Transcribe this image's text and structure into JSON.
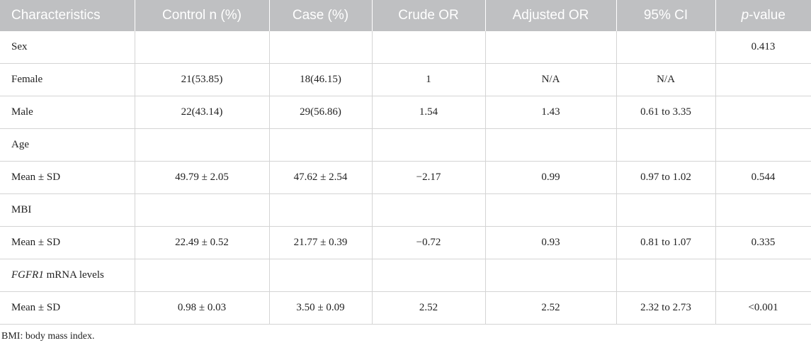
{
  "table": {
    "headers": [
      {
        "label": "Characteristics",
        "name": "header-characteristics"
      },
      {
        "label": "Control n (%)",
        "name": "header-control"
      },
      {
        "label": "Case (%)",
        "name": "header-case"
      },
      {
        "label": "Crude OR",
        "name": "header-crude-or"
      },
      {
        "label": "Adjusted OR",
        "name": "header-adjusted-or"
      },
      {
        "label": "95% CI",
        "name": "header-ci"
      }
    ],
    "p_header": {
      "italic_part": "p",
      "rest": "-value"
    },
    "rows": [
      {
        "kind": "section",
        "cells": [
          "Sex",
          "",
          "",
          "",
          "",
          "",
          "0.413"
        ]
      },
      {
        "kind": "data",
        "cells": [
          "Female",
          "21(53.85)",
          "18(46.15)",
          "1",
          "N/A",
          "N/A",
          ""
        ]
      },
      {
        "kind": "data",
        "cells": [
          "Male",
          "22(43.14)",
          "29(56.86)",
          "1.54",
          "1.43",
          "0.61 to 3.35",
          ""
        ]
      },
      {
        "kind": "section",
        "cells": [
          "Age",
          "",
          "",
          "",
          "",
          "",
          ""
        ]
      },
      {
        "kind": "data",
        "cells": [
          "Mean ± SD",
          "49.79 ± 2.05",
          "47.62 ± 2.54",
          "−2.17",
          "0.99",
          "0.97 to 1.02",
          "0.544"
        ]
      },
      {
        "kind": "section",
        "cells": [
          "MBI",
          "",
          "",
          "",
          "",
          "",
          ""
        ]
      },
      {
        "kind": "data",
        "cells": [
          "Mean ± SD",
          "22.49 ± 0.52",
          "21.77 ± 0.39",
          "−0.72",
          "0.93",
          "0.81 to 1.07",
          "0.335"
        ]
      },
      {
        "kind": "section",
        "gene": "FGFR1",
        "cells": [
          " mRNA levels",
          "",
          "",
          "",
          "",
          "",
          ""
        ]
      },
      {
        "kind": "data",
        "cells": [
          "Mean ± SD",
          "0.98 ± 0.03",
          "3.50 ± 0.09",
          "2.52",
          "2.52",
          "2.32 to 2.73",
          "<0.001"
        ]
      }
    ]
  },
  "footnote": "BMI: body mass index.",
  "colors": {
    "header_background": "#bfc0c2",
    "header_text": "#ffffff",
    "grid_line": "#d4d4d4",
    "body_text": "#222222"
  }
}
